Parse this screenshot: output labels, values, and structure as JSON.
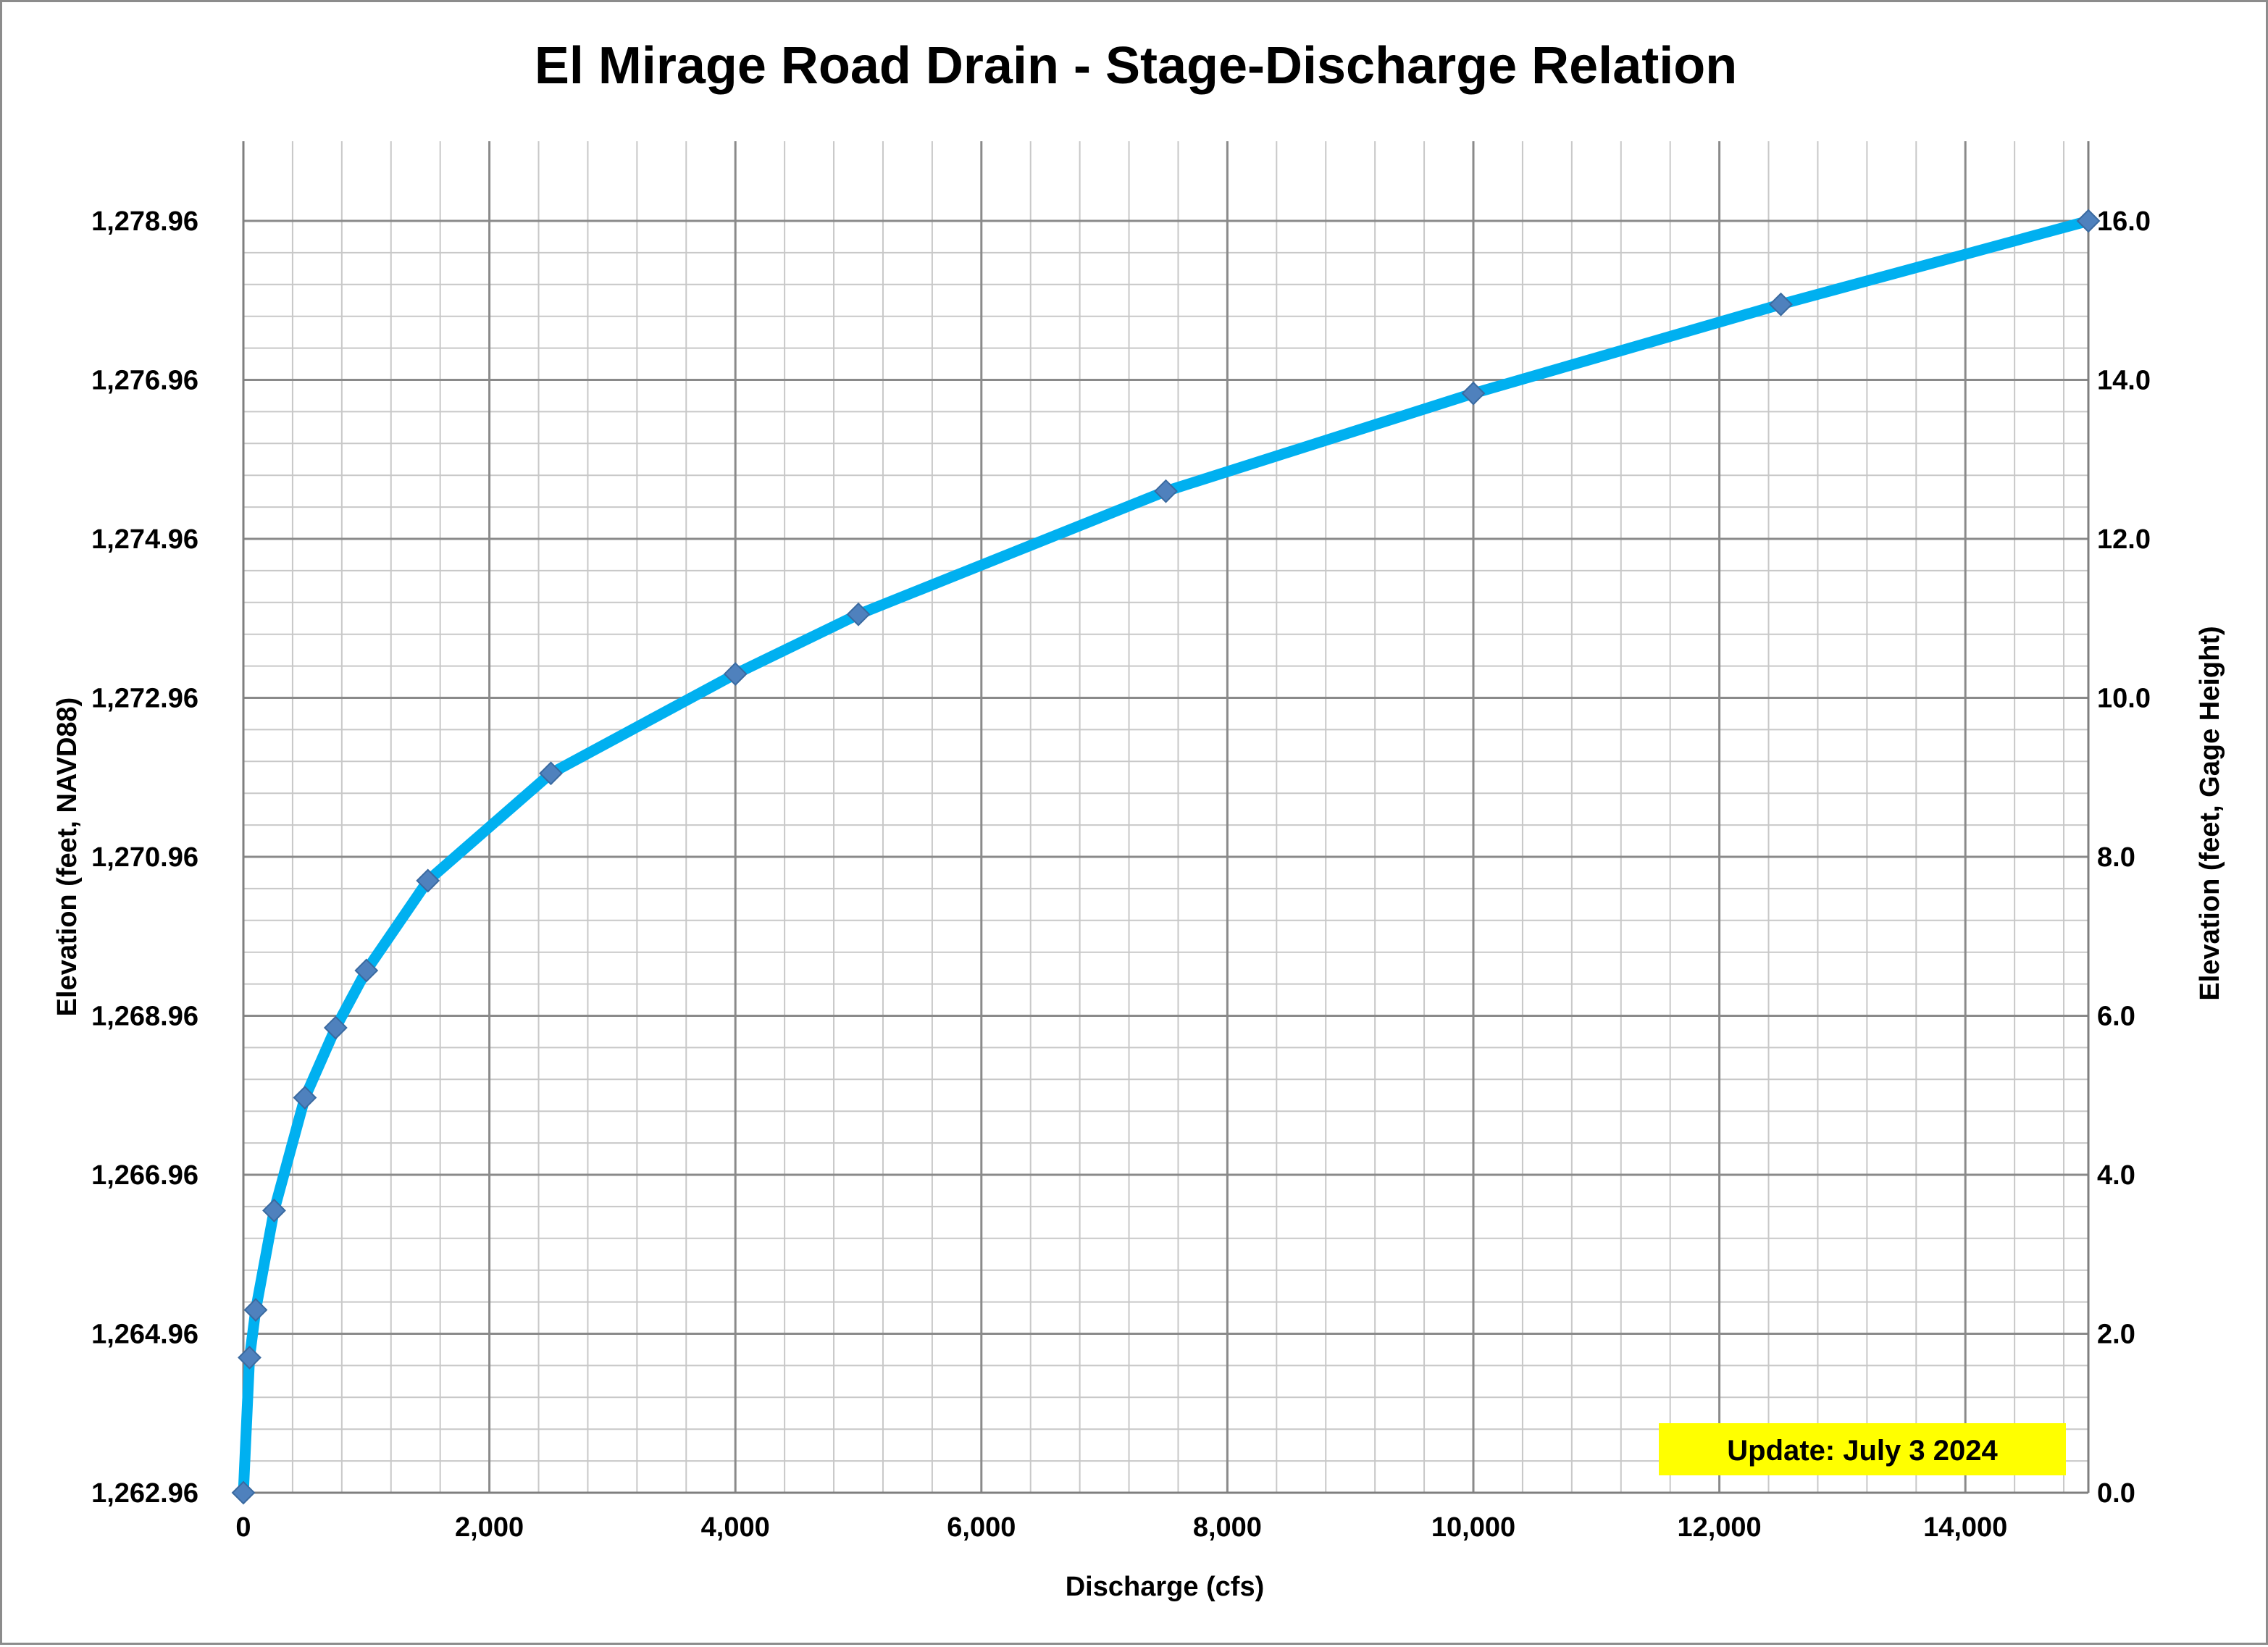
{
  "chart_data": {
    "type": "line",
    "title": "El Mirage Road Drain - Stage-Discharge Relation",
    "xlabel": "Discharge (cfs)",
    "ylabel_left": "Elevation (feet, NAVD88)",
    "ylabel_right": "Elevation (feet, Gage Height)",
    "xlim": [
      0,
      15000
    ],
    "ylim_left": [
      1262.96,
      1278.96
    ],
    "ylim_right": [
      0.0,
      16.0
    ],
    "x_ticks": [
      0,
      2000,
      4000,
      6000,
      8000,
      10000,
      12000,
      14000
    ],
    "x_tick_labels": [
      "0",
      "2,000",
      "4,000",
      "6,000",
      "8,000",
      "10,000",
      "12,000",
      "14,000"
    ],
    "y_left_ticks": [
      1262.96,
      1264.96,
      1266.96,
      1268.96,
      1270.96,
      1272.96,
      1274.96,
      1276.96,
      1278.96
    ],
    "y_left_tick_labels": [
      "1,262.96",
      "1,264.96",
      "1,266.96",
      "1,268.96",
      "1,270.96",
      "1,272.96",
      "1,274.96",
      "1,276.96",
      "1,278.96"
    ],
    "y_right_ticks": [
      0,
      2,
      4,
      6,
      8,
      10,
      12,
      14,
      16
    ],
    "y_right_tick_labels": [
      "0.0",
      "2.0",
      "4.0",
      "6.0",
      "8.0",
      "10.0",
      "12.0",
      "14.0",
      "16.0"
    ],
    "grid": true,
    "minor_grid": {
      "x_step": 400,
      "y_step": 0.4
    },
    "series": [
      {
        "color": "#00b0f0",
        "marker_color": "#4f81bd",
        "marker": "diamond",
        "x": [
          0,
          50,
          100,
          250,
          500,
          750,
          1000,
          1500,
          2500,
          4000,
          5000,
          7500,
          10000,
          12500,
          15000
        ],
        "y": [
          0.0,
          1.7,
          2.3,
          3.55,
          4.97,
          5.85,
          6.57,
          7.7,
          9.05,
          10.3,
          11.05,
          12.6,
          13.83,
          14.95,
          16.0
        ]
      }
    ],
    "annotation": {
      "text": "Update: July 3 2024",
      "background": "#ffff00",
      "position": "bottom-right"
    }
  }
}
